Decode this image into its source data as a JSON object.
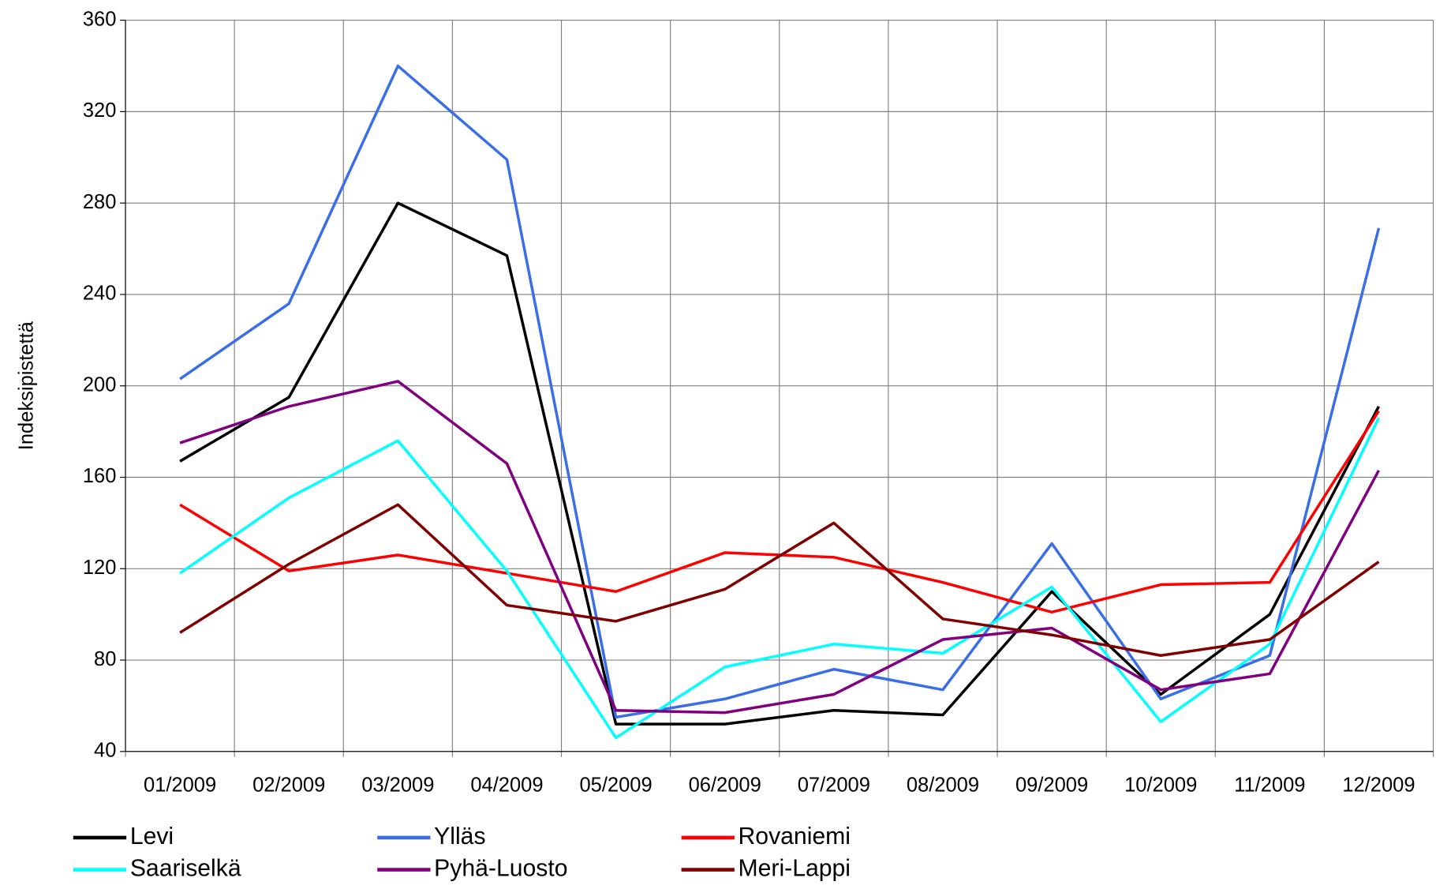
{
  "chart_data": {
    "type": "line",
    "y_label": "Indeksipistettä",
    "categories": [
      "01/2009",
      "02/2009",
      "03/2009",
      "04/2009",
      "05/2009",
      "06/2009",
      "07/2009",
      "08/2009",
      "09/2009",
      "10/2009",
      "11/2009",
      "12/2009"
    ],
    "series": [
      {
        "name": "Levi",
        "color": "#000000",
        "values": [
          167,
          195,
          280,
          257,
          52,
          52,
          58,
          56,
          110,
          65,
          100,
          191
        ]
      },
      {
        "name": "Ylläs",
        "color": "#3a6ee8",
        "values": [
          203,
          236,
          340,
          299,
          55,
          63,
          76,
          67,
          131,
          63,
          82,
          269
        ]
      },
      {
        "name": "Rovaniemi",
        "color": "#ff0000",
        "values": [
          148,
          119,
          126,
          118,
          110,
          127,
          125,
          114,
          101,
          113,
          114,
          189
        ]
      },
      {
        "name": "Saariselkä",
        "color": "#00ffff",
        "values": [
          118,
          151,
          176,
          119,
          46,
          77,
          87,
          83,
          112,
          53,
          87,
          186
        ]
      },
      {
        "name": "Pyhä-Luosto",
        "color": "#800080",
        "values": [
          175,
          191,
          202,
          166,
          58,
          57,
          65,
          89,
          94,
          67,
          74,
          163
        ]
      },
      {
        "name": "Meri-Lappi",
        "color": "#800000",
        "values": [
          92,
          122,
          148,
          104,
          97,
          111,
          140,
          98,
          91,
          82,
          89,
          123
        ]
      }
    ],
    "ylim": [
      40,
      360
    ],
    "yticks": [
      40,
      80,
      120,
      160,
      200,
      240,
      280,
      320,
      360
    ],
    "grid": true
  }
}
